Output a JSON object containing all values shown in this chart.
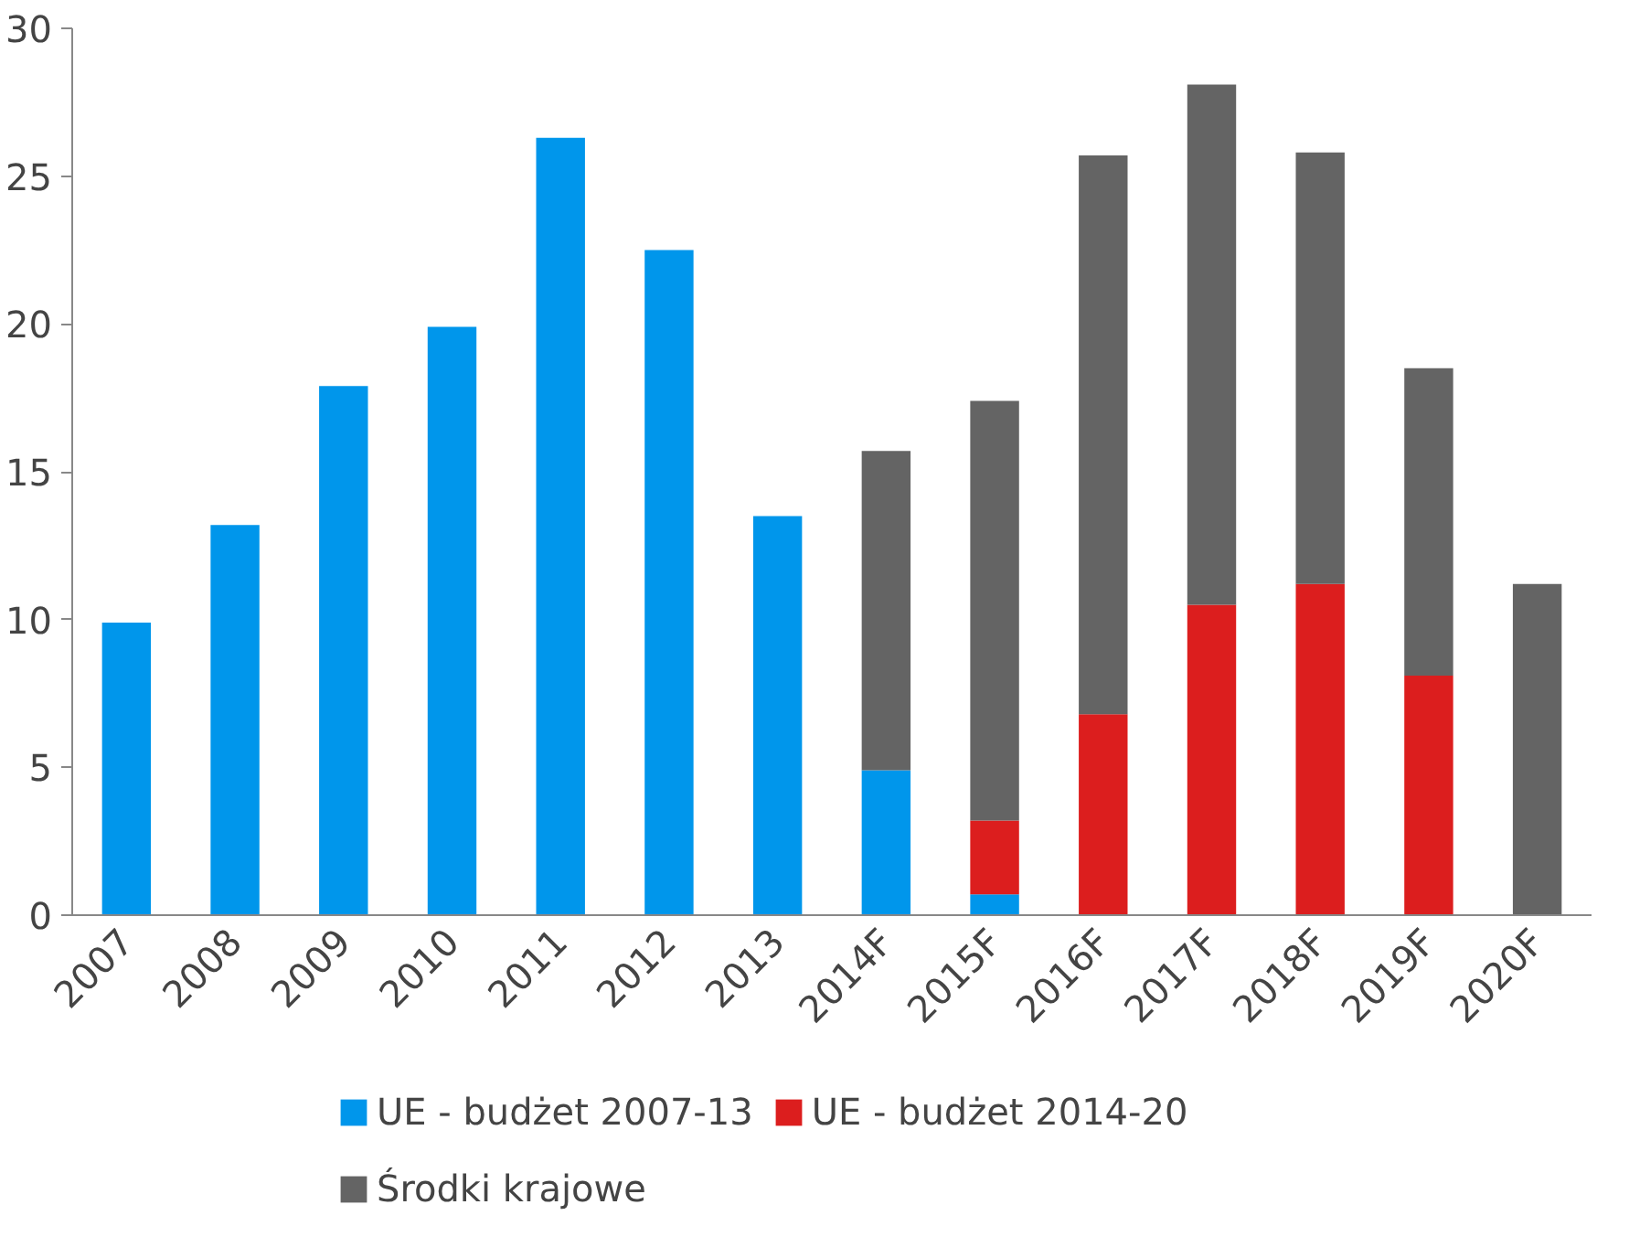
{
  "chart_data": {
    "type": "bar",
    "stacked": true,
    "categories": [
      "2007",
      "2008",
      "2009",
      "2010",
      "2011",
      "2012",
      "2013",
      "2014F",
      "2015F",
      "2016F",
      "2017F",
      "2018F",
      "2019F",
      "2020F"
    ],
    "series": [
      {
        "name": "UE - budżet 2007-13",
        "color": "#0096eb",
        "values": [
          9.9,
          13.2,
          17.9,
          19.9,
          26.3,
          22.5,
          13.5,
          4.9,
          0.7,
          null,
          null,
          null,
          null,
          null
        ]
      },
      {
        "name": "UE - budżet 2014-20",
        "color": "#dc1e1e",
        "values": [
          null,
          null,
          null,
          null,
          null,
          null,
          null,
          null,
          2.5,
          6.8,
          10.5,
          11.2,
          8.1,
          null
        ]
      },
      {
        "name": "Środki krajowe",
        "color": "#646464",
        "values": [
          null,
          null,
          null,
          null,
          null,
          null,
          null,
          10.8,
          14.2,
          18.9,
          17.6,
          14.6,
          10.4,
          11.2
        ]
      }
    ],
    "ylim": [
      0,
      30
    ],
    "yticks": [
      0,
      5,
      10,
      15,
      20,
      25,
      30
    ],
    "grid": false,
    "legend": "bottom"
  }
}
